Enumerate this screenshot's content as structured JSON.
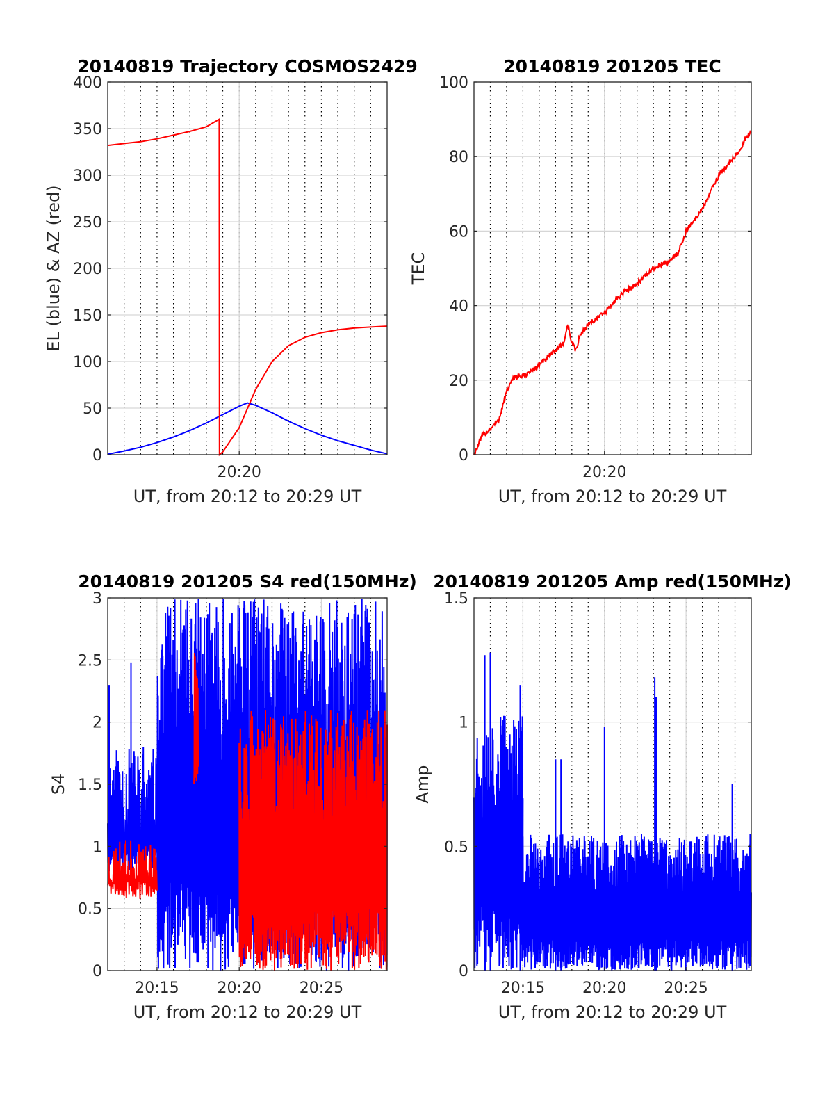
{
  "chart_data": [
    {
      "type": "line",
      "title": "20140819 Trajectory COSMOS2429",
      "xlabel": "UT, from 20:12 to 20:29 UT",
      "ylabel": "EL (blue) & AZ (red)",
      "xlim": [
        "20:12:00",
        "20:29:00"
      ],
      "ylim": [
        0,
        400
      ],
      "yticks": [
        "0",
        "50",
        "100",
        "150",
        "200",
        "250",
        "300",
        "350",
        "400"
      ],
      "xticks": [
        {
          "t": "20:20:00",
          "label": "20:20"
        }
      ],
      "minor_x_grid": "every 1 min, dotted",
      "grid": true,
      "colors": {
        "el": "#0000ff",
        "az": "#ff0000"
      },
      "series": [
        {
          "color": "#0000ff",
          "style": "smooth",
          "points": [
            [
              "20:12:00",
              0.5
            ],
            [
              "20:13:00",
              4
            ],
            [
              "20:14:00",
              8
            ],
            [
              "20:15:00",
              13
            ],
            [
              "20:16:00",
              19
            ],
            [
              "20:17:00",
              26
            ],
            [
              "20:18:00",
              34
            ],
            [
              "20:19:00",
              43
            ],
            [
              "20:20:00",
              52
            ],
            [
              "20:20:30",
              55.5
            ],
            [
              "20:21:00",
              53
            ],
            [
              "20:22:00",
              45
            ],
            [
              "20:23:00",
              36
            ],
            [
              "20:24:00",
              28
            ],
            [
              "20:25:00",
              21
            ],
            [
              "20:26:00",
              15
            ],
            [
              "20:27:00",
              10
            ],
            [
              "20:28:00",
              5
            ],
            [
              "20:29:00",
              1
            ]
          ]
        },
        {
          "color": "#ff0000",
          "style": "smooth",
          "points": [
            [
              "20:12:00",
              332
            ],
            [
              "20:13:00",
              334
            ],
            [
              "20:14:00",
              336
            ],
            [
              "20:15:00",
              339
            ],
            [
              "20:16:00",
              343
            ],
            [
              "20:17:00",
              347
            ],
            [
              "20:18:00",
              352
            ],
            [
              "20:18:47",
              360
            ],
            [
              "20:18:48",
              0
            ],
            [
              "20:19:00",
              3
            ],
            [
              "20:20:00",
              29
            ],
            [
              "20:21:00",
              70
            ],
            [
              "20:22:00",
              100
            ],
            [
              "20:23:00",
              117
            ],
            [
              "20:24:00",
              126
            ],
            [
              "20:25:00",
              131
            ],
            [
              "20:26:00",
              134
            ],
            [
              "20:27:00",
              136
            ],
            [
              "20:28:00",
              137
            ],
            [
              "20:29:00",
              138
            ]
          ]
        }
      ]
    },
    {
      "type": "line",
      "title": "20140819 201205 TEC",
      "xlabel": "UT, from 20:12 to 20:29 UT",
      "ylabel": "TEC",
      "xlim": [
        "20:12:00",
        "20:29:00"
      ],
      "ylim": [
        0,
        100
      ],
      "yticks": [
        "0",
        "20",
        "40",
        "60",
        "80",
        "100"
      ],
      "xticks": [
        {
          "t": "20:20:00",
          "label": "20:20"
        }
      ],
      "minor_x_grid": "every 1 min, dotted",
      "grid": true,
      "series": [
        {
          "color": "#ff0000",
          "style": "noisy",
          "noise": 0.7,
          "points": [
            [
              "20:12:00",
              0
            ],
            [
              "20:12:30",
              5
            ],
            [
              "20:13:00",
              7
            ],
            [
              "20:13:30",
              9
            ],
            [
              "20:14:00",
              17
            ],
            [
              "20:14:30",
              21
            ],
            [
              "20:15:00",
              21
            ],
            [
              "20:16:00",
              24
            ],
            [
              "20:17:00",
              28
            ],
            [
              "20:17:30",
              30
            ],
            [
              "20:17:45",
              35
            ],
            [
              "20:18:00",
              30
            ],
            [
              "20:18:15",
              28
            ],
            [
              "20:18:30",
              32
            ],
            [
              "20:19:00",
              35
            ],
            [
              "20:20:00",
              38
            ],
            [
              "20:21:00",
              43
            ],
            [
              "20:22:00",
              46
            ],
            [
              "20:23:00",
              50
            ],
            [
              "20:24:00",
              52
            ],
            [
              "20:24:30",
              54
            ],
            [
              "20:25:00",
              60
            ],
            [
              "20:26:00",
              66
            ],
            [
              "20:27:00",
              75
            ],
            [
              "20:28:00",
              80
            ],
            [
              "20:29:00",
              87
            ]
          ]
        }
      ]
    },
    {
      "type": "line",
      "title": "20140819 201205 S4 red(150MHz)",
      "xlabel": "UT, from 20:12 to 20:29 UT",
      "ylabel": "S4",
      "xlim": [
        "20:12:00",
        "20:29:00"
      ],
      "ylim": [
        0,
        3
      ],
      "yticks": [
        "0",
        "0.5",
        "1",
        "1.5",
        "2",
        "2.5",
        "3"
      ],
      "xticks": [
        {
          "t": "20:15:00",
          "label": "20:15"
        },
        {
          "t": "20:20:00",
          "label": "20:20"
        },
        {
          "t": "20:25:00",
          "label": "20:25"
        }
      ],
      "minor_x_grid": "every 1 min, dotted",
      "grid": true,
      "series": [
        {
          "color": "#0000ff",
          "style": "band",
          "seed": 11,
          "segments": [
            {
              "from": "20:12:00",
              "to": "20:15:00",
              "low": 0.8,
              "high": 1.8,
              "spikes": [
                [
                  "20:12:05",
                  2.3
                ],
                [
                  "20:13:25",
                  2.48
                ],
                [
                  "20:14:10",
                  1.8
                ]
              ]
            },
            {
              "from": "20:15:00",
              "to": "20:15:15",
              "low": 0.0,
              "high": 3.0
            },
            {
              "from": "20:15:15",
              "to": "20:19:00",
              "low": 0.0,
              "high": 3.0
            },
            {
              "from": "20:19:00",
              "to": "20:29:00",
              "low": 0.0,
              "high": 3.0
            }
          ]
        },
        {
          "color": "#ff0000",
          "style": "band",
          "seed": 23,
          "segments": [
            {
              "from": "20:12:00",
              "to": "20:15:00",
              "low": 0.65,
              "high": 1.05
            },
            {
              "from": "20:17:15",
              "to": "20:17:30",
              "low": 1.5,
              "high": 2.6
            },
            {
              "from": "20:20:00",
              "to": "20:29:00",
              "low": 0.0,
              "high": 2.1
            }
          ]
        }
      ]
    },
    {
      "type": "line",
      "title": "20140819 201205 Amp red(150MHz)",
      "xlabel": "UT, from 20:12 to 20:29 UT",
      "ylabel": "Amp",
      "xlim": [
        "20:12:00",
        "20:29:00"
      ],
      "ylim": [
        0,
        1.5
      ],
      "yticks": [
        "0",
        "0.5",
        "1",
        "1.5"
      ],
      "xticks": [
        {
          "t": "20:15:00",
          "label": "20:15"
        },
        {
          "t": "20:20:00",
          "label": "20:20"
        },
        {
          "t": "20:25:00",
          "label": "20:25"
        }
      ],
      "minor_x_grid": "every 1 min, dotted",
      "grid": true,
      "series": [
        {
          "color": "#0000ff",
          "style": "band",
          "seed": 37,
          "segments": [
            {
              "from": "20:12:00",
              "to": "20:15:00",
              "low": 0.0,
              "high": 1.05,
              "spikes": [
                [
                  "20:12:40",
                  1.27
                ],
                [
                  "20:13:00",
                  1.28
                ],
                [
                  "20:14:50",
                  1.15
                ]
              ]
            },
            {
              "from": "20:15:00",
              "to": "20:29:00",
              "low": 0.0,
              "high": 0.55,
              "spikes": [
                [
                  "20:17:00",
                  0.85
                ],
                [
                  "20:17:20",
                  0.85
                ],
                [
                  "20:20:00",
                  0.98
                ],
                [
                  "20:23:05",
                  1.18
                ],
                [
                  "20:23:10",
                  1.1
                ],
                [
                  "20:27:50",
                  0.75
                ]
              ]
            }
          ]
        }
      ]
    }
  ]
}
